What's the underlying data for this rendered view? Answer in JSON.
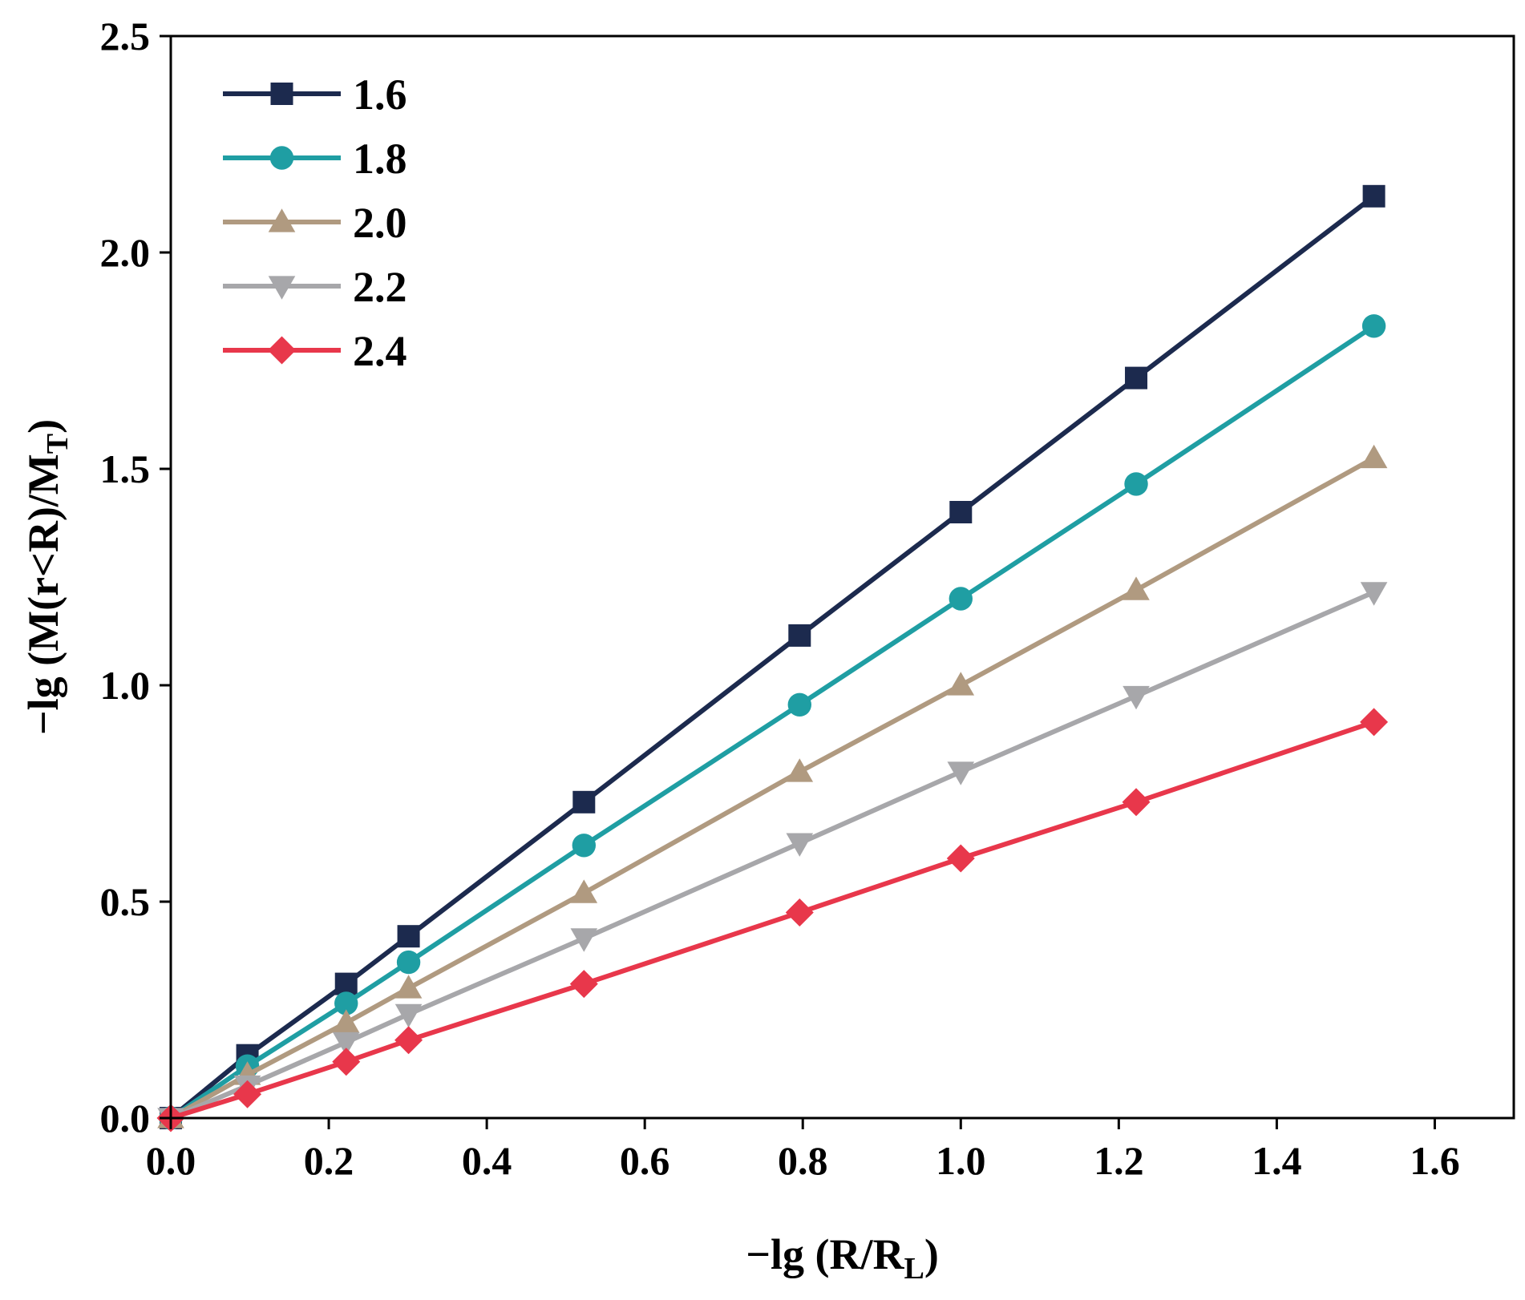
{
  "chart_data": {
    "type": "line",
    "xlabel": {
      "prefix": "−lg (R/R",
      "sub": "L",
      "suffix": ")"
    },
    "ylabel": {
      "prefix": "−lg (M(r<R)/M",
      "sub": "T",
      "suffix": ")"
    },
    "xlim": [
      0,
      1.7
    ],
    "ylim": [
      0,
      2.5
    ],
    "xticks": [
      0.0,
      0.2,
      0.4,
      0.6,
      0.8,
      1.0,
      1.2,
      1.4,
      1.6
    ],
    "xtick_labels": [
      "0.0",
      "0.2",
      "0.4",
      "0.6",
      "0.8",
      "1.0",
      "1.2",
      "1.4",
      "1.6"
    ],
    "yticks": [
      0.0,
      0.5,
      1.0,
      1.5,
      2.0,
      2.5
    ],
    "ytick_labels": [
      "0.0",
      "0.5",
      "1.0",
      "1.5",
      "2.0",
      "2.5"
    ],
    "legend_position": "top-left",
    "x": [
      0,
      0.097,
      0.222,
      0.301,
      0.523,
      0.796,
      1.0,
      1.222,
      1.523
    ],
    "series": [
      {
        "name": "1.6",
        "marker": "square",
        "color": "#1c2a4e",
        "values": [
          0,
          0.145,
          0.31,
          0.42,
          0.73,
          1.115,
          1.4,
          1.71,
          2.13
        ]
      },
      {
        "name": "1.8",
        "marker": "circle",
        "color": "#1f9ea3",
        "values": [
          0,
          0.12,
          0.265,
          0.36,
          0.63,
          0.955,
          1.2,
          1.465,
          1.83
        ]
      },
      {
        "name": "2.0",
        "marker": "triangle-up",
        "color": "#b09a80",
        "values": [
          0,
          0.1,
          0.22,
          0.3,
          0.52,
          0.8,
          1.0,
          1.22,
          1.525
        ]
      },
      {
        "name": "2.2",
        "marker": "triangle-down",
        "color": "#a7a7aa",
        "values": [
          0,
          0.075,
          0.175,
          0.24,
          0.415,
          0.635,
          0.8,
          0.975,
          1.215
        ]
      },
      {
        "name": "2.4",
        "marker": "diamond",
        "color": "#e8374b",
        "values": [
          0,
          0.055,
          0.13,
          0.18,
          0.31,
          0.475,
          0.6,
          0.73,
          0.915
        ]
      }
    ]
  }
}
